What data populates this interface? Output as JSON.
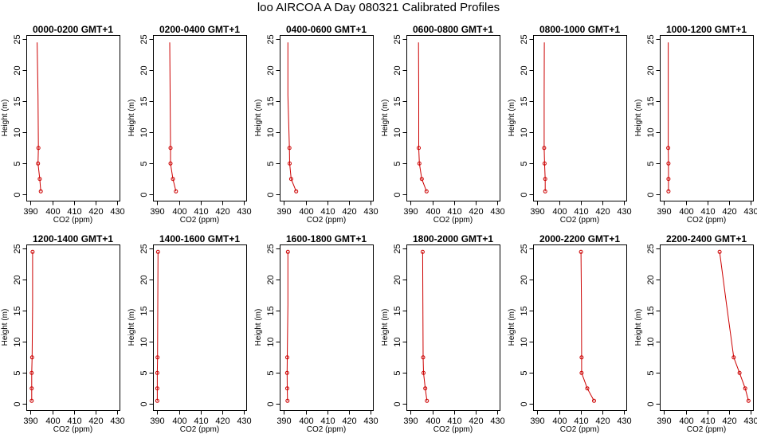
{
  "page": {
    "title": "loo AIRCOA A  Day 080321  Calibrated Profiles"
  },
  "colors": {
    "profile": "#cc0000",
    "axis": "#000000",
    "background": "#ffffff"
  },
  "chart_data": [
    {
      "type": "line",
      "title": "0000-0200 GMT+1",
      "xlabel": "CO2 (ppm)",
      "ylabel": "Height (m)",
      "xlim": [
        388,
        431
      ],
      "ylim": [
        -1,
        25.7
      ],
      "xticks": [
        390,
        400,
        410,
        420,
        430
      ],
      "yticks": [
        0,
        5,
        10,
        15,
        20,
        25
      ],
      "series": [
        {
          "x": [
            393.0,
            393.4,
            393.6,
            393.4,
            394.2,
            394.7
          ],
          "y": [
            24.5,
            16,
            7.5,
            5,
            2.5,
            0.5
          ],
          "markers": [
            false,
            false,
            true,
            true,
            true,
            true
          ]
        }
      ]
    },
    {
      "type": "line",
      "title": "0200-0400 GMT+1",
      "xlabel": "CO2 (ppm)",
      "ylabel": "Height (m)",
      "xlim": [
        388,
        431
      ],
      "ylim": [
        -1,
        25.7
      ],
      "xticks": [
        390,
        400,
        410,
        420,
        430
      ],
      "yticks": [
        0,
        5,
        10,
        15,
        20,
        25
      ],
      "series": [
        {
          "x": [
            395.7,
            395.9,
            396.1,
            396.1,
            397.2,
            398.6
          ],
          "y": [
            24.5,
            16,
            7.5,
            5,
            2.5,
            0.5
          ],
          "markers": [
            false,
            false,
            true,
            true,
            true,
            true
          ]
        }
      ]
    },
    {
      "type": "line",
      "title": "0400-0600 GMT+1",
      "xlabel": "CO2 (ppm)",
      "ylabel": "Height (m)",
      "xlim": [
        388,
        431
      ],
      "ylim": [
        -1,
        25.7
      ],
      "xticks": [
        390,
        400,
        410,
        420,
        430
      ],
      "yticks": [
        0,
        5,
        10,
        15,
        20,
        25
      ],
      "series": [
        {
          "x": [
            391.8,
            391.8,
            392.5,
            392.6,
            393.3,
            395.6
          ],
          "y": [
            24.5,
            16,
            7.5,
            5,
            2.5,
            0.5
          ],
          "markers": [
            false,
            false,
            true,
            true,
            true,
            true
          ]
        }
      ]
    },
    {
      "type": "line",
      "title": "0600-0800 GMT+1",
      "xlabel": "CO2 (ppm)",
      "ylabel": "Height (m)",
      "xlim": [
        388,
        431
      ],
      "ylim": [
        -1,
        25.7
      ],
      "xticks": [
        390,
        400,
        410,
        420,
        430
      ],
      "yticks": [
        0,
        5,
        10,
        15,
        20,
        25
      ],
      "series": [
        {
          "x": [
            393.6,
            393.7,
            393.7,
            394.0,
            395.1,
            397.3
          ],
          "y": [
            24.5,
            16,
            7.5,
            5,
            2.5,
            0.5
          ],
          "markers": [
            false,
            false,
            true,
            true,
            true,
            true
          ]
        }
      ]
    },
    {
      "type": "line",
      "title": "0800-1000 GMT+1",
      "xlabel": "CO2 (ppm)",
      "ylabel": "Height (m)",
      "xlim": [
        388,
        431
      ],
      "ylim": [
        -1,
        25.7
      ],
      "xticks": [
        390,
        400,
        410,
        420,
        430
      ],
      "yticks": [
        0,
        5,
        10,
        15,
        20,
        25
      ],
      "series": [
        {
          "x": [
            393.2,
            393.1,
            393.1,
            393.3,
            393.6,
            393.6
          ],
          "y": [
            24.5,
            16,
            7.5,
            5,
            2.5,
            0.5
          ],
          "markers": [
            false,
            false,
            true,
            true,
            true,
            true
          ]
        }
      ]
    },
    {
      "type": "line",
      "title": "1000-1200 GMT+1",
      "xlabel": "CO2 (ppm)",
      "ylabel": "Height (m)",
      "xlim": [
        388,
        431
      ],
      "ylim": [
        -1,
        25.7
      ],
      "xticks": [
        390,
        400,
        410,
        420,
        430
      ],
      "yticks": [
        0,
        5,
        10,
        15,
        20,
        25
      ],
      "series": [
        {
          "x": [
            391.9,
            391.9,
            391.9,
            392.0,
            392.0,
            392.0
          ],
          "y": [
            24.5,
            16,
            7.5,
            5,
            2.5,
            0.5
          ],
          "markers": [
            false,
            false,
            true,
            true,
            true,
            true
          ]
        }
      ]
    },
    {
      "type": "line",
      "title": "1200-1400 GMT+1",
      "xlabel": "CO2 (ppm)",
      "ylabel": "Height (m)",
      "xlim": [
        388,
        431
      ],
      "ylim": [
        -1,
        25.7
      ],
      "xticks": [
        390,
        400,
        410,
        420,
        430
      ],
      "yticks": [
        0,
        5,
        10,
        15,
        20,
        25
      ],
      "series": [
        {
          "x": [
            390.9,
            390.9,
            390.7,
            390.5,
            390.5,
            390.5
          ],
          "y": [
            24.5,
            16,
            7.5,
            5,
            2.5,
            0.5
          ],
          "markers": [
            true,
            false,
            true,
            true,
            true,
            true
          ]
        }
      ]
    },
    {
      "type": "line",
      "title": "1400-1600 GMT+1",
      "xlabel": "CO2 (ppm)",
      "ylabel": "Height (m)",
      "xlim": [
        388,
        431
      ],
      "ylim": [
        -1,
        25.7
      ],
      "xticks": [
        390,
        400,
        410,
        420,
        430
      ],
      "yticks": [
        0,
        5,
        10,
        15,
        20,
        25
      ],
      "series": [
        {
          "x": [
            390.3,
            390.2,
            390.1,
            390.0,
            390.0,
            390.0
          ],
          "y": [
            24.5,
            16,
            7.5,
            5,
            2.5,
            0.5
          ],
          "markers": [
            true,
            false,
            true,
            true,
            true,
            true
          ]
        }
      ]
    },
    {
      "type": "line",
      "title": "1600-1800 GMT+1",
      "xlabel": "CO2 (ppm)",
      "ylabel": "Height (m)",
      "xlim": [
        388,
        431
      ],
      "ylim": [
        -1,
        25.7
      ],
      "xticks": [
        390,
        400,
        410,
        420,
        430
      ],
      "yticks": [
        0,
        5,
        10,
        15,
        20,
        25
      ],
      "series": [
        {
          "x": [
            391.8,
            391.8,
            391.5,
            391.4,
            391.5,
            391.6
          ],
          "y": [
            24.5,
            16,
            7.5,
            5,
            2.5,
            0.5
          ],
          "markers": [
            true,
            false,
            true,
            true,
            true,
            true
          ]
        }
      ]
    },
    {
      "type": "line",
      "title": "1800-2000 GMT+1",
      "xlabel": "CO2 (ppm)",
      "ylabel": "Height (m)",
      "xlim": [
        388,
        431
      ],
      "ylim": [
        -1,
        25.7
      ],
      "xticks": [
        390,
        400,
        410,
        420,
        430
      ],
      "yticks": [
        0,
        5,
        10,
        15,
        20,
        25
      ],
      "series": [
        {
          "x": [
            395.5,
            395.6,
            395.7,
            395.9,
            396.7,
            397.5
          ],
          "y": [
            24.5,
            16,
            7.5,
            5,
            2.5,
            0.5
          ],
          "markers": [
            true,
            false,
            true,
            true,
            true,
            true
          ]
        }
      ]
    },
    {
      "type": "line",
      "title": "2000-2200 GMT+1",
      "xlabel": "CO2 (ppm)",
      "ylabel": "Height (m)",
      "xlim": [
        388,
        431
      ],
      "ylim": [
        -1,
        25.7
      ],
      "xticks": [
        390,
        400,
        410,
        420,
        430
      ],
      "yticks": [
        0,
        5,
        10,
        15,
        20,
        25
      ],
      "series": [
        {
          "x": [
            410.1,
            410.3,
            410.4,
            410.4,
            413.0,
            416.1
          ],
          "y": [
            24.5,
            16,
            7.5,
            5,
            2.5,
            0.5
          ],
          "markers": [
            true,
            false,
            true,
            true,
            true,
            true
          ]
        }
      ]
    },
    {
      "type": "line",
      "title": "2200-2400 GMT+1",
      "xlabel": "CO2 (ppm)",
      "ylabel": "Height (m)",
      "xlim": [
        388,
        431
      ],
      "ylim": [
        -1,
        25.7
      ],
      "xticks": [
        390,
        400,
        410,
        420,
        430
      ],
      "yticks": [
        0,
        5,
        10,
        15,
        20,
        25
      ],
      "series": [
        {
          "x": [
            415.6,
            418.8,
            422.1,
            424.8,
            427.4,
            428.9
          ],
          "y": [
            24.5,
            16,
            7.5,
            5,
            2.5,
            0.5
          ],
          "markers": [
            true,
            false,
            true,
            true,
            true,
            true
          ]
        }
      ]
    }
  ]
}
